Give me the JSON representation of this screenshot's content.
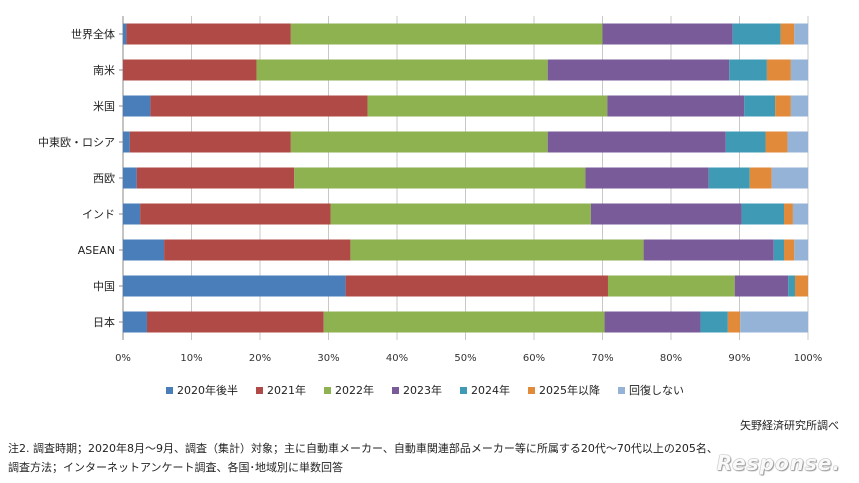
{
  "chart_data": {
    "type": "bar",
    "orientation": "horizontal",
    "stacked": "percent",
    "categories": [
      "世界全体",
      "南米",
      "米国",
      "中東欧・ロシア",
      "西欧",
      "インド",
      "ASEAN",
      "中国",
      "日本"
    ],
    "series": [
      {
        "name": "2020年後半",
        "color": "#4a7ebb",
        "values": [
          0.5,
          0,
          4,
          1,
          2,
          2.5,
          6,
          32.5,
          3.5
        ]
      },
      {
        "name": "2021年",
        "color": "#b04a46",
        "values": [
          24,
          19.5,
          31.7,
          23.5,
          23,
          27.8,
          27.2,
          38.3,
          25.8
        ]
      },
      {
        "name": "2022年",
        "color": "#8eb24f",
        "values": [
          45.5,
          42.5,
          35,
          37.5,
          42.5,
          38,
          42.8,
          18.5,
          41
        ]
      },
      {
        "name": "2023年",
        "color": "#7a5b9a",
        "values": [
          19,
          26.5,
          20,
          26,
          18,
          22,
          19,
          7.8,
          14
        ]
      },
      {
        "name": "2024年",
        "color": "#3f9bb5",
        "values": [
          7,
          5.5,
          4.5,
          5.8,
          6,
          6.2,
          1.5,
          1,
          4
        ]
      },
      {
        "name": "2025年以降",
        "color": "#e08a3a",
        "values": [
          2,
          3.5,
          2.3,
          3.2,
          3.2,
          1.3,
          1.5,
          1.9,
          1.8
        ]
      },
      {
        "name": "回復しない",
        "color": "#95b3d7",
        "values": [
          2,
          2.5,
          2.5,
          3,
          5.3,
          2.2,
          2,
          0,
          9.9
        ]
      }
    ],
    "xlim": [
      0,
      100
    ],
    "xticks": [
      "0%",
      "10%",
      "20%",
      "30%",
      "40%",
      "50%",
      "60%",
      "70%",
      "80%",
      "90%",
      "100%"
    ],
    "grid": true,
    "legend_position": "bottom"
  },
  "credit": "矢野経済研究所調べ",
  "notes": [
    "注2. 調査時期；2020年8月～9月、調査（集計）対象；主に自動車メーカー、自動車関連部品メーカー等に所属する20代～70代以上の205名、",
    "調査方法；インターネットアンケート調査、各国･地域別に単数回答"
  ],
  "watermark": "Response."
}
